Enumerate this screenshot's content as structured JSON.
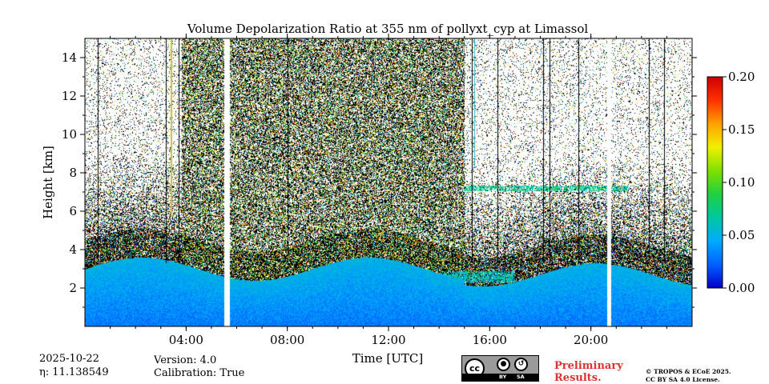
{
  "chart_data": {
    "type": "heatmap",
    "title": "Volume Depolarization Ratio at 355 nm of pollyxt_cyp at Limassol",
    "xlabel": "Time [UTC]",
    "ylabel": "Height [km]",
    "xlim_hours": [
      0,
      24
    ],
    "ylim_km": [
      0,
      15
    ],
    "x_ticks": [
      {
        "hour": 4,
        "label": "04:00"
      },
      {
        "hour": 8,
        "label": "08:00"
      },
      {
        "hour": 12,
        "label": "12:00"
      },
      {
        "hour": 16,
        "label": "16:00"
      },
      {
        "hour": 20,
        "label": "20:00"
      }
    ],
    "y_ticks": [
      {
        "value": 2,
        "label": "2"
      },
      {
        "value": 4,
        "label": "4"
      },
      {
        "value": 6,
        "label": "6"
      },
      {
        "value": 8,
        "label": "8"
      },
      {
        "value": 10,
        "label": "10"
      },
      {
        "value": 12,
        "label": "12"
      },
      {
        "value": 14,
        "label": "14"
      }
    ],
    "colorbar": {
      "min": 0.0,
      "max": 0.2,
      "ticks": [
        {
          "value": 0.0,
          "label": "0.00"
        },
        {
          "value": 0.05,
          "label": "0.05"
        },
        {
          "value": 0.1,
          "label": "0.10"
        },
        {
          "value": 0.15,
          "label": "0.15"
        },
        {
          "value": 0.2,
          "label": "0.20"
        }
      ],
      "colormap": [
        "#0000cc",
        "#0060ff",
        "#00aaff",
        "#00c8a0",
        "#20d040",
        "#80e000",
        "#f0f000",
        "#ffa000",
        "#ff3000",
        "#cc0000"
      ]
    },
    "gaps_hours": [
      [
        5.5,
        5.72
      ],
      [
        20.62,
        20.78
      ]
    ],
    "vertical_streaks_hours": [
      0.5,
      3.2,
      3.7,
      8.0,
      15.3,
      16.3,
      18.1,
      18.35,
      19.5,
      22.3,
      22.9
    ],
    "dense_cloud_period_hours": [
      3.8,
      15.0
    ],
    "layers": [
      {
        "name": "aerosol boundary layer",
        "top_km": 3.0,
        "value": 0.03
      },
      {
        "name": "elevated aerosol layer",
        "start_hour": 15.0,
        "end_hour": 21.5,
        "height_km": 7.2,
        "value": 0.07
      },
      {
        "name": "depolarizing layer 14-17 UTC",
        "start_hour": 14.0,
        "end_hour": 17.0,
        "height_km": 2.6,
        "value": 0.06
      }
    ]
  },
  "meta": {
    "date": "2025-10-22",
    "eta": "η: 11.138549",
    "version": "Version: 4.0",
    "calibration": "Calibration: True"
  },
  "license": {
    "badge_cc": "cc",
    "badge_by": "BY",
    "badge_sa": "SA",
    "preliminary": "Preliminary",
    "results": "Results.",
    "copyright": "© TROPOS & ECoE 2025.",
    "license_text": "CC BY SA 4.0 License."
  }
}
